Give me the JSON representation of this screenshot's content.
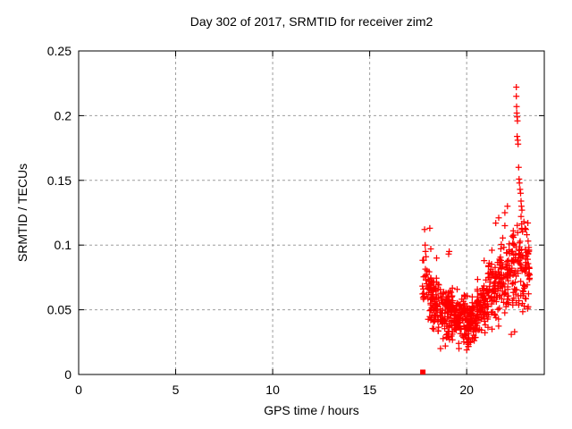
{
  "chart_data": {
    "type": "scatter",
    "title": "Day 302 of 2017, SRMTID for receiver zim2",
    "xlabel": "GPS time / hours",
    "ylabel": "SRMTID / TECUs",
    "xlim": [
      0,
      24
    ],
    "ylim": [
      0,
      0.25
    ],
    "xticks": [
      {
        "v": 0,
        "label": "0"
      },
      {
        "v": 5,
        "label": "5"
      },
      {
        "v": 10,
        "label": "10"
      },
      {
        "v": 15,
        "label": "15"
      },
      {
        "v": 20,
        "label": "20"
      }
    ],
    "yticks": [
      {
        "v": 0,
        "label": "0"
      },
      {
        "v": 0.05,
        "label": "0.05"
      },
      {
        "v": 0.1,
        "label": "0.1"
      },
      {
        "v": 0.15,
        "label": "0.15"
      },
      {
        "v": 0.2,
        "label": "0.2"
      },
      {
        "v": 0.25,
        "label": "0.25"
      }
    ],
    "grid": {
      "show": true,
      "color": "#9e9e9e",
      "dash": "3 3"
    },
    "border_color": "#000000",
    "marker": {
      "shape": "plus",
      "size": 7,
      "stroke_width": 1.25,
      "color": "#ff0000"
    },
    "data_x_range_hours": [
      17.72,
      23.25
    ],
    "baseline_square_point": [
      17.74,
      0
    ],
    "outlier_points": [
      [
        17.83,
        0.112
      ],
      [
        17.86,
        0.1
      ],
      [
        17.88,
        0.095
      ],
      [
        17.9,
        0.091
      ],
      [
        18.1,
        0.113
      ],
      [
        18.15,
        0.097
      ],
      [
        18.45,
        0.09
      ],
      [
        19.07,
        0.093
      ],
      [
        19.1,
        0.095
      ],
      [
        18.65,
        0.02
      ],
      [
        18.9,
        0.022
      ],
      [
        19.6,
        0.02
      ],
      [
        20.0,
        0.019
      ],
      [
        20.9,
        0.088
      ],
      [
        21.3,
        0.096
      ],
      [
        21.5,
        0.117
      ],
      [
        21.65,
        0.121
      ],
      [
        21.97,
        0.115
      ],
      [
        21.97,
        0.125
      ],
      [
        22.1,
        0.13
      ],
      [
        22.3,
        0.031
      ],
      [
        22.47,
        0.033
      ],
      [
        22.56,
        0.222
      ],
      [
        22.56,
        0.215
      ],
      [
        22.57,
        0.207
      ],
      [
        22.58,
        0.202
      ],
      [
        22.6,
        0.199
      ],
      [
        22.62,
        0.196
      ],
      [
        22.6,
        0.184
      ],
      [
        22.63,
        0.181
      ],
      [
        22.65,
        0.178
      ],
      [
        22.68,
        0.16
      ],
      [
        22.7,
        0.151
      ],
      [
        22.72,
        0.148
      ],
      [
        22.75,
        0.143
      ],
      [
        22.78,
        0.14
      ],
      [
        22.8,
        0.134
      ],
      [
        22.82,
        0.13
      ],
      [
        22.85,
        0.127
      ],
      [
        22.8,
        0.122
      ],
      [
        22.95,
        0.118
      ],
      [
        23.05,
        0.112
      ],
      [
        23.1,
        0.108
      ]
    ],
    "cluster_bins": [
      {
        "x0": 17.72,
        "x1": 17.9,
        "n": 14,
        "y_min": 0.04,
        "y_max": 0.1
      },
      {
        "x0": 17.9,
        "x1": 18.2,
        "n": 40,
        "y_min": 0.034,
        "y_max": 0.088
      },
      {
        "x0": 18.2,
        "x1": 18.7,
        "n": 70,
        "y_min": 0.03,
        "y_max": 0.078
      },
      {
        "x0": 18.7,
        "x1": 19.3,
        "n": 90,
        "y_min": 0.024,
        "y_max": 0.072
      },
      {
        "x0": 19.3,
        "x1": 19.9,
        "n": 95,
        "y_min": 0.022,
        "y_max": 0.066
      },
      {
        "x0": 19.9,
        "x1": 20.5,
        "n": 95,
        "y_min": 0.019,
        "y_max": 0.062
      },
      {
        "x0": 20.5,
        "x1": 21.1,
        "n": 85,
        "y_min": 0.028,
        "y_max": 0.076
      },
      {
        "x0": 21.1,
        "x1": 21.7,
        "n": 75,
        "y_min": 0.034,
        "y_max": 0.092
      },
      {
        "x0": 21.7,
        "x1": 22.3,
        "n": 72,
        "y_min": 0.04,
        "y_max": 0.108
      },
      {
        "x0": 22.3,
        "x1": 22.85,
        "n": 68,
        "y_min": 0.048,
        "y_max": 0.122
      },
      {
        "x0": 22.85,
        "x1": 23.25,
        "n": 52,
        "y_min": 0.036,
        "y_max": 0.124
      }
    ],
    "seed": 3022017
  }
}
